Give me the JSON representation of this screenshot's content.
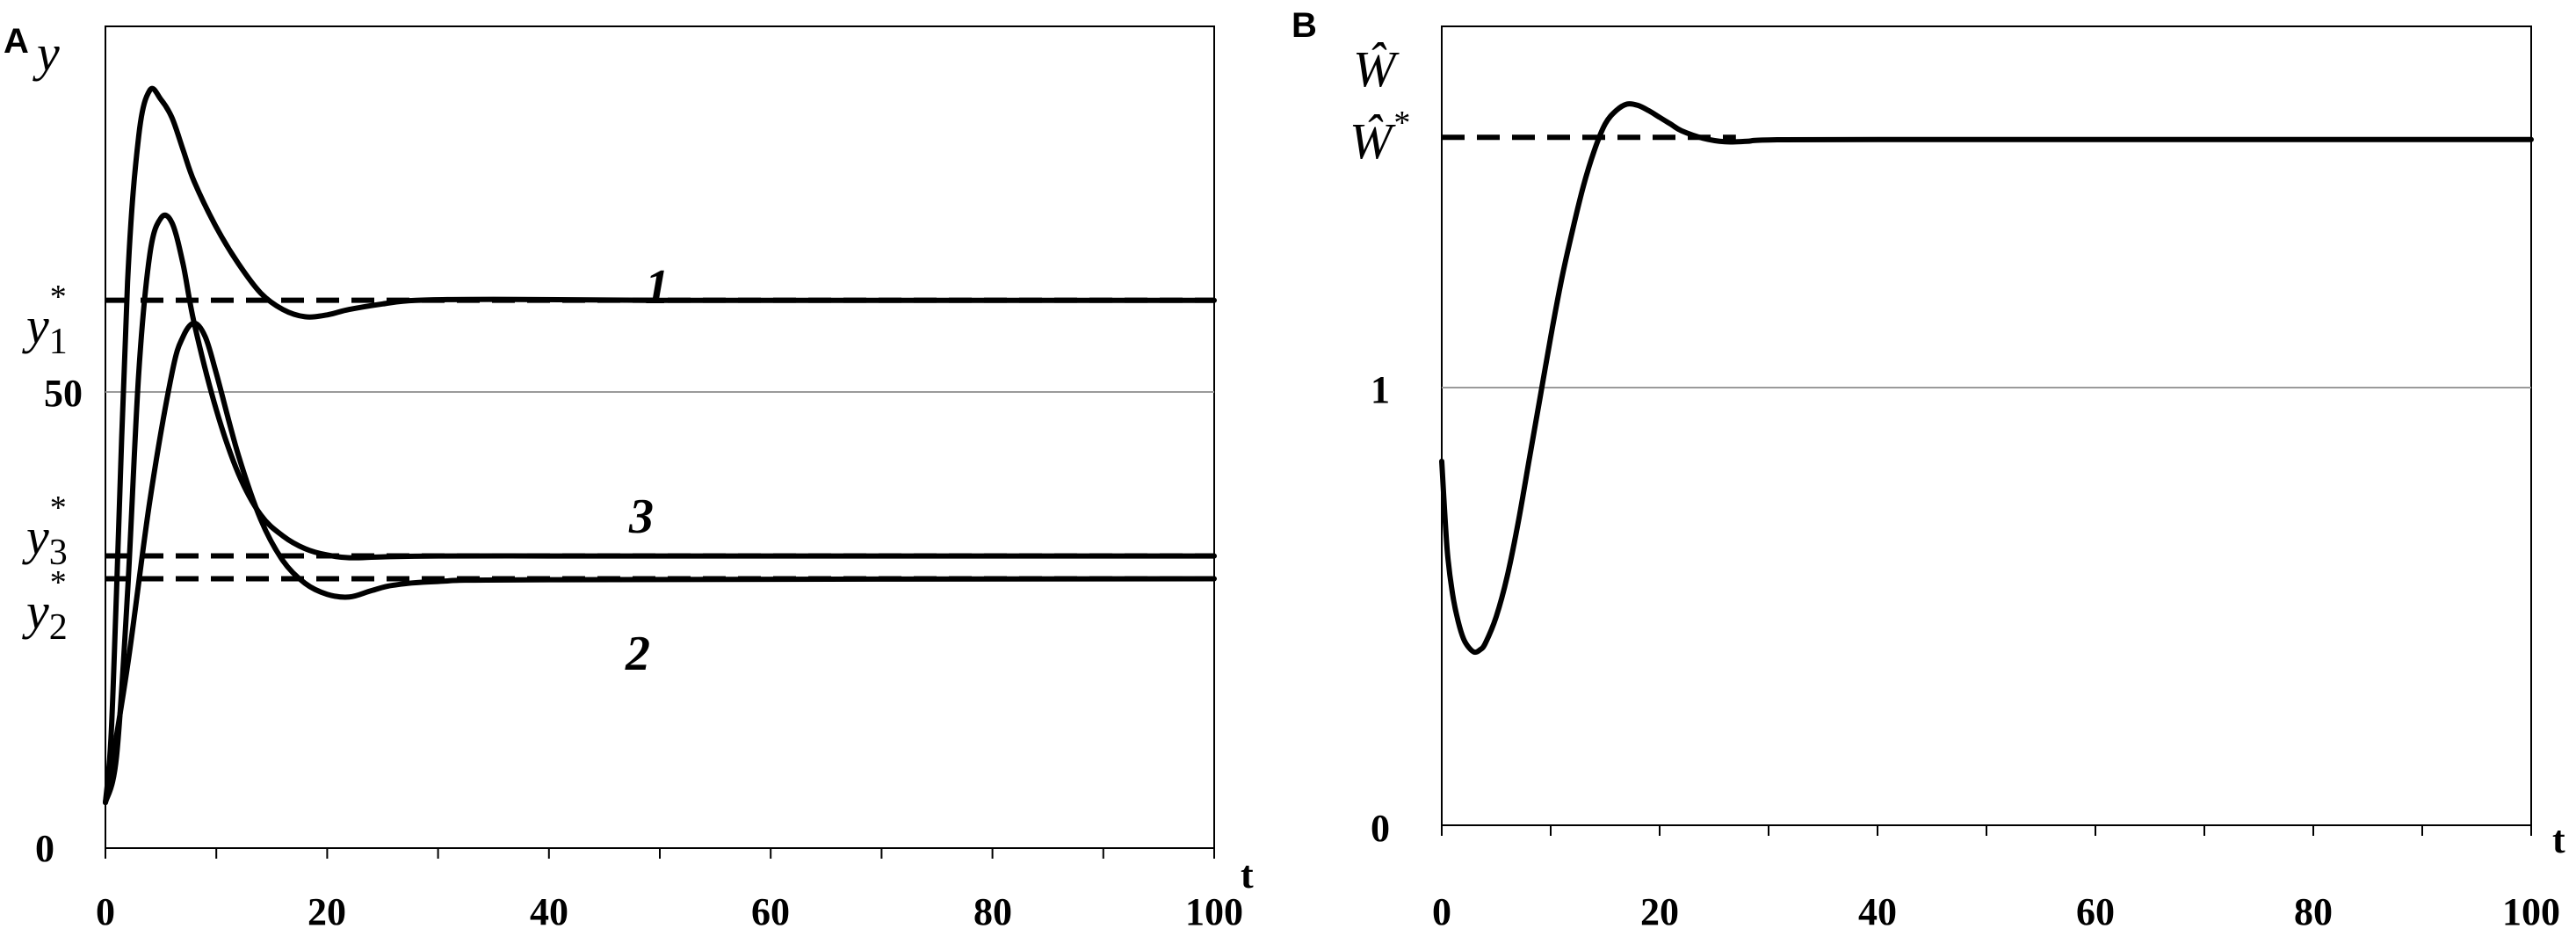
{
  "chart_data": [
    {
      "panel": "A",
      "type": "line",
      "ylabel": "y",
      "xlabel": "t",
      "xlim": [
        0,
        100
      ],
      "ylim": [
        0,
        90
      ],
      "x_ticks": [
        "0",
        "20",
        "40",
        "60",
        "80",
        "100"
      ],
      "y_ticks": [
        "0",
        "50"
      ],
      "grid": "horizontal line at y = 50",
      "setpoint_labels": [
        {
          "base": "y",
          "sub": "1",
          "sup": "*",
          "value": 60
        },
        {
          "base": "y",
          "sub": "3",
          "sup": "*",
          "value": 32
        },
        {
          "base": "y",
          "sub": "2",
          "sup": "*",
          "value": 29.5
        }
      ],
      "series": [
        {
          "name": "1",
          "style": "solid",
          "x": [
            0,
            0.5,
            1,
            2,
            3,
            4,
            5,
            6,
            7,
            8,
            10,
            12,
            14,
            16,
            18,
            20,
            22,
            25,
            28,
            35,
            50,
            100
          ],
          "y": [
            5,
            12,
            28,
            62,
            78,
            83,
            82,
            80,
            76.5,
            73,
            68,
            64,
            60.8,
            59,
            58.2,
            58.4,
            59,
            59.6,
            60,
            60.1,
            60,
            60
          ]
        },
        {
          "name": "3",
          "style": "solid",
          "x": [
            0,
            1,
            2,
            3,
            4,
            5,
            6,
            7,
            8,
            10,
            12,
            14,
            16,
            18,
            20,
            22,
            25,
            30,
            40,
            50,
            100
          ],
          "y": [
            5,
            10,
            28,
            52,
            65,
            69,
            68.5,
            64,
            57.5,
            48,
            41,
            36.5,
            34.2,
            32.8,
            32.1,
            31.8,
            31.9,
            32,
            32,
            32,
            32
          ]
        },
        {
          "name": "2",
          "style": "solid",
          "x": [
            0,
            2,
            4,
            6,
            7,
            8,
            9,
            10,
            12,
            14,
            16,
            18,
            20,
            22,
            24,
            26,
            30,
            40,
            100
          ],
          "y": [
            5,
            20,
            38,
            52,
            56,
            57.5,
            56,
            52,
            43,
            36,
            31.5,
            29,
            27.8,
            27.5,
            28.2,
            28.8,
            29.2,
            29.4,
            29.5
          ]
        }
      ],
      "reference_lines": [
        {
          "style": "dashed",
          "y": 60,
          "x": [
            0,
            100
          ]
        },
        {
          "style": "dashed",
          "y": 32,
          "x": [
            0,
            100
          ]
        },
        {
          "style": "dashed",
          "y": 29.5,
          "x": [
            0,
            100
          ]
        }
      ]
    },
    {
      "panel": "B",
      "type": "line",
      "ylabel": "Ŵ",
      "xlabel": "t",
      "xlim": [
        0,
        100
      ],
      "ylim": [
        0,
        1.8
      ],
      "x_ticks": [
        "0",
        "20",
        "40",
        "60",
        "80",
        "100"
      ],
      "y_ticks": [
        "0",
        "1"
      ],
      "grid": "horizontal line at y = 1",
      "setpoint_labels": [
        {
          "base": "Ŵ",
          "sup": "*",
          "value": 1.55
        }
      ],
      "series": [
        {
          "name": "",
          "style": "solid",
          "x": [
            0,
            0.5,
            1,
            1.5,
            2,
            2.5,
            3,
            3.5,
            4,
            5,
            6,
            7,
            8,
            9,
            10,
            11,
            12,
            13,
            14,
            15,
            16,
            17,
            18,
            19,
            20,
            21,
            22,
            24,
            26,
            28,
            30,
            40,
            100
          ],
          "y": [
            0.82,
            0.62,
            0.52,
            0.46,
            0.42,
            0.4,
            0.39,
            0.395,
            0.41,
            0.47,
            0.56,
            0.68,
            0.82,
            0.96,
            1.1,
            1.23,
            1.34,
            1.44,
            1.52,
            1.58,
            1.61,
            1.625,
            1.622,
            1.61,
            1.595,
            1.58,
            1.565,
            1.548,
            1.54,
            1.541,
            1.544,
            1.545,
            1.545
          ]
        }
      ],
      "reference_lines": [
        {
          "style": "dashed",
          "y": 1.55,
          "x": [
            0,
            27
          ]
        }
      ]
    }
  ]
}
